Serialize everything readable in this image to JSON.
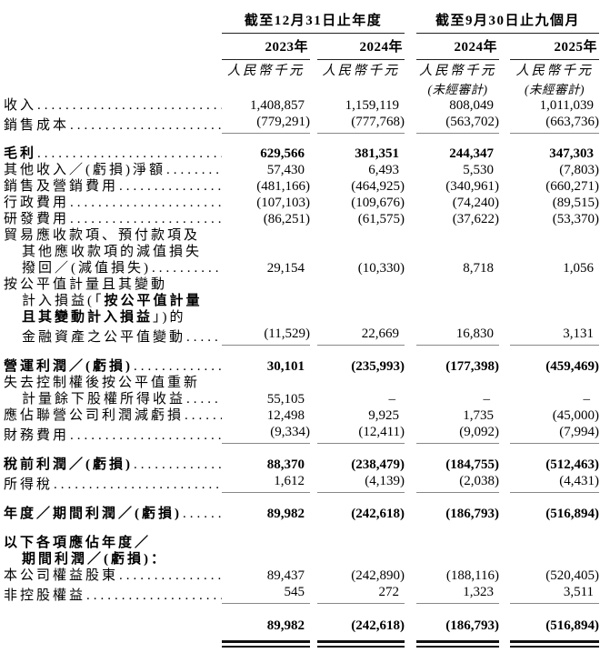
{
  "header": {
    "groups": [
      {
        "title": "截至12月31日止年度",
        "years": [
          "2023年",
          "2024年"
        ]
      },
      {
        "title": "截至9月30日止九個月",
        "years": [
          "2024年",
          "2025年"
        ]
      }
    ],
    "unit_label": "人民幣千元",
    "unaudited_label": "(未經審計)"
  },
  "table": {
    "rows": [
      {
        "label": [
          {
            "t": "收入"
          }
        ],
        "dots": true,
        "values": [
          "1,408,857",
          "1,159,119",
          "808,049",
          "1,011,039"
        ]
      },
      {
        "label": [
          {
            "t": "銷售成本"
          }
        ],
        "dots": true,
        "values": [
          "(779,291)",
          "(777,768)",
          "(563,702)",
          "(663,736)"
        ],
        "underline": true
      },
      {
        "spacer": 13
      },
      {
        "label": [
          {
            "t": "毛利"
          }
        ],
        "bold": true,
        "dots": true,
        "values": [
          "629,566",
          "381,351",
          "244,347",
          "347,303"
        ]
      },
      {
        "label": [
          {
            "t": "其他收入／(虧損)淨額"
          }
        ],
        "dots": true,
        "values": [
          "57,430",
          "6,493",
          "5,530",
          "(7,803)"
        ]
      },
      {
        "label": [
          {
            "t": "銷售及營銷費用"
          }
        ],
        "dots": true,
        "values": [
          "(481,166)",
          "(464,925)",
          "(340,961)",
          "(660,271)"
        ]
      },
      {
        "label": [
          {
            "t": "行政費用"
          }
        ],
        "dots": true,
        "values": [
          "(107,103)",
          "(109,676)",
          "(74,240)",
          "(89,515)"
        ]
      },
      {
        "label": [
          {
            "t": "研發費用"
          }
        ],
        "dots": true,
        "values": [
          "(86,251)",
          "(61,575)",
          "(37,622)",
          "(53,370)"
        ]
      },
      {
        "label": [
          {
            "t": "貿易應收款項、預付款項及"
          }
        ]
      },
      {
        "label": [
          {
            "t": "其他應收款項的減值損失"
          }
        ],
        "indent": true
      },
      {
        "label": [
          {
            "t": "撥回／(減值損失) "
          }
        ],
        "indent": true,
        "dots": true,
        "values": [
          "29,154",
          "(10,330)",
          "8,718",
          "1,056"
        ]
      },
      {
        "label": [
          {
            "t": "按公平值計量且其變動"
          }
        ]
      },
      {
        "label": [
          {
            "t": "計入損益(「"
          },
          {
            "t": "按公平值計量",
            "b": true
          }
        ],
        "indent": true
      },
      {
        "label": [
          {
            "t": "且其變動計入損益",
            "b": true
          },
          {
            "t": "」)的"
          }
        ],
        "indent": true
      },
      {
        "label": [
          {
            "t": "金融資產之公平值變動 "
          }
        ],
        "indent": true,
        "dots": true,
        "values": [
          "(11,529)",
          "22,669",
          "16,830",
          "3,131"
        ],
        "underline": true
      },
      {
        "spacer": 14
      },
      {
        "label": [
          {
            "t": "營運利潤／(虧損)"
          }
        ],
        "bold": true,
        "dots": true,
        "values": [
          "30,101",
          "(235,993)",
          "(177,398)",
          "(459,469)"
        ]
      },
      {
        "label": [
          {
            "t": "失去控制權後按公平值重新"
          }
        ]
      },
      {
        "label": [
          {
            "t": "計量餘下股權所得收益 "
          }
        ],
        "indent": true,
        "dots": true,
        "values": [
          "55,105",
          "–",
          "–",
          "–"
        ]
      },
      {
        "label": [
          {
            "t": "應佔聯營公司利潤減虧損"
          }
        ],
        "dots": true,
        "values": [
          "12,498",
          "9,925",
          "1,735",
          "(45,000)"
        ]
      },
      {
        "label": [
          {
            "t": "財務費用"
          }
        ],
        "dots": true,
        "values": [
          "(9,334)",
          "(12,411)",
          "(9,092)",
          "(7,994)"
        ],
        "underline": true
      },
      {
        "spacer": 14
      },
      {
        "label": [
          {
            "t": "稅前利潤／(虧損)"
          }
        ],
        "bold": true,
        "dots": true,
        "values": [
          "88,370",
          "(238,479)",
          "(184,755)",
          "(512,463)"
        ]
      },
      {
        "label": [
          {
            "t": "所得稅"
          }
        ],
        "dots": true,
        "values": [
          "1,612",
          "(4,139)",
          "(2,038)",
          "(4,431)"
        ],
        "underline": true
      },
      {
        "spacer": 14
      },
      {
        "label": [
          {
            "t": "年度／期間利潤／(虧損)"
          }
        ],
        "bold": true,
        "dots": true,
        "values": [
          "89,982",
          "(242,618)",
          "(186,793)",
          "(516,894)"
        ]
      },
      {
        "spacer": 14
      },
      {
        "label": [
          {
            "t": "以下各項應佔年度／"
          }
        ],
        "bold": true
      },
      {
        "label": [
          {
            "t": "期間利潤／(虧損)："
          }
        ],
        "bold": true,
        "indent": true
      },
      {
        "label": [
          {
            "t": "本公司權益股東"
          }
        ],
        "dots": true,
        "values": [
          "89,437",
          "(242,890)",
          "(188,116)",
          "(520,405)"
        ]
      },
      {
        "label": [
          {
            "t": "非控股權益"
          }
        ],
        "dots": true,
        "values": [
          "545",
          "272",
          "1,323",
          "3,511"
        ],
        "underline": true
      },
      {
        "spacer": 15
      },
      {
        "bold": true,
        "values": [
          "89,982",
          "(242,618)",
          "(186,793)",
          "(516,894)"
        ],
        "double_underline": true
      }
    ]
  },
  "colors": {
    "text": "#000000",
    "header_rule": "#222222",
    "body_rule": "#888888",
    "total_rule": "#111111",
    "background": "#ffffff"
  }
}
